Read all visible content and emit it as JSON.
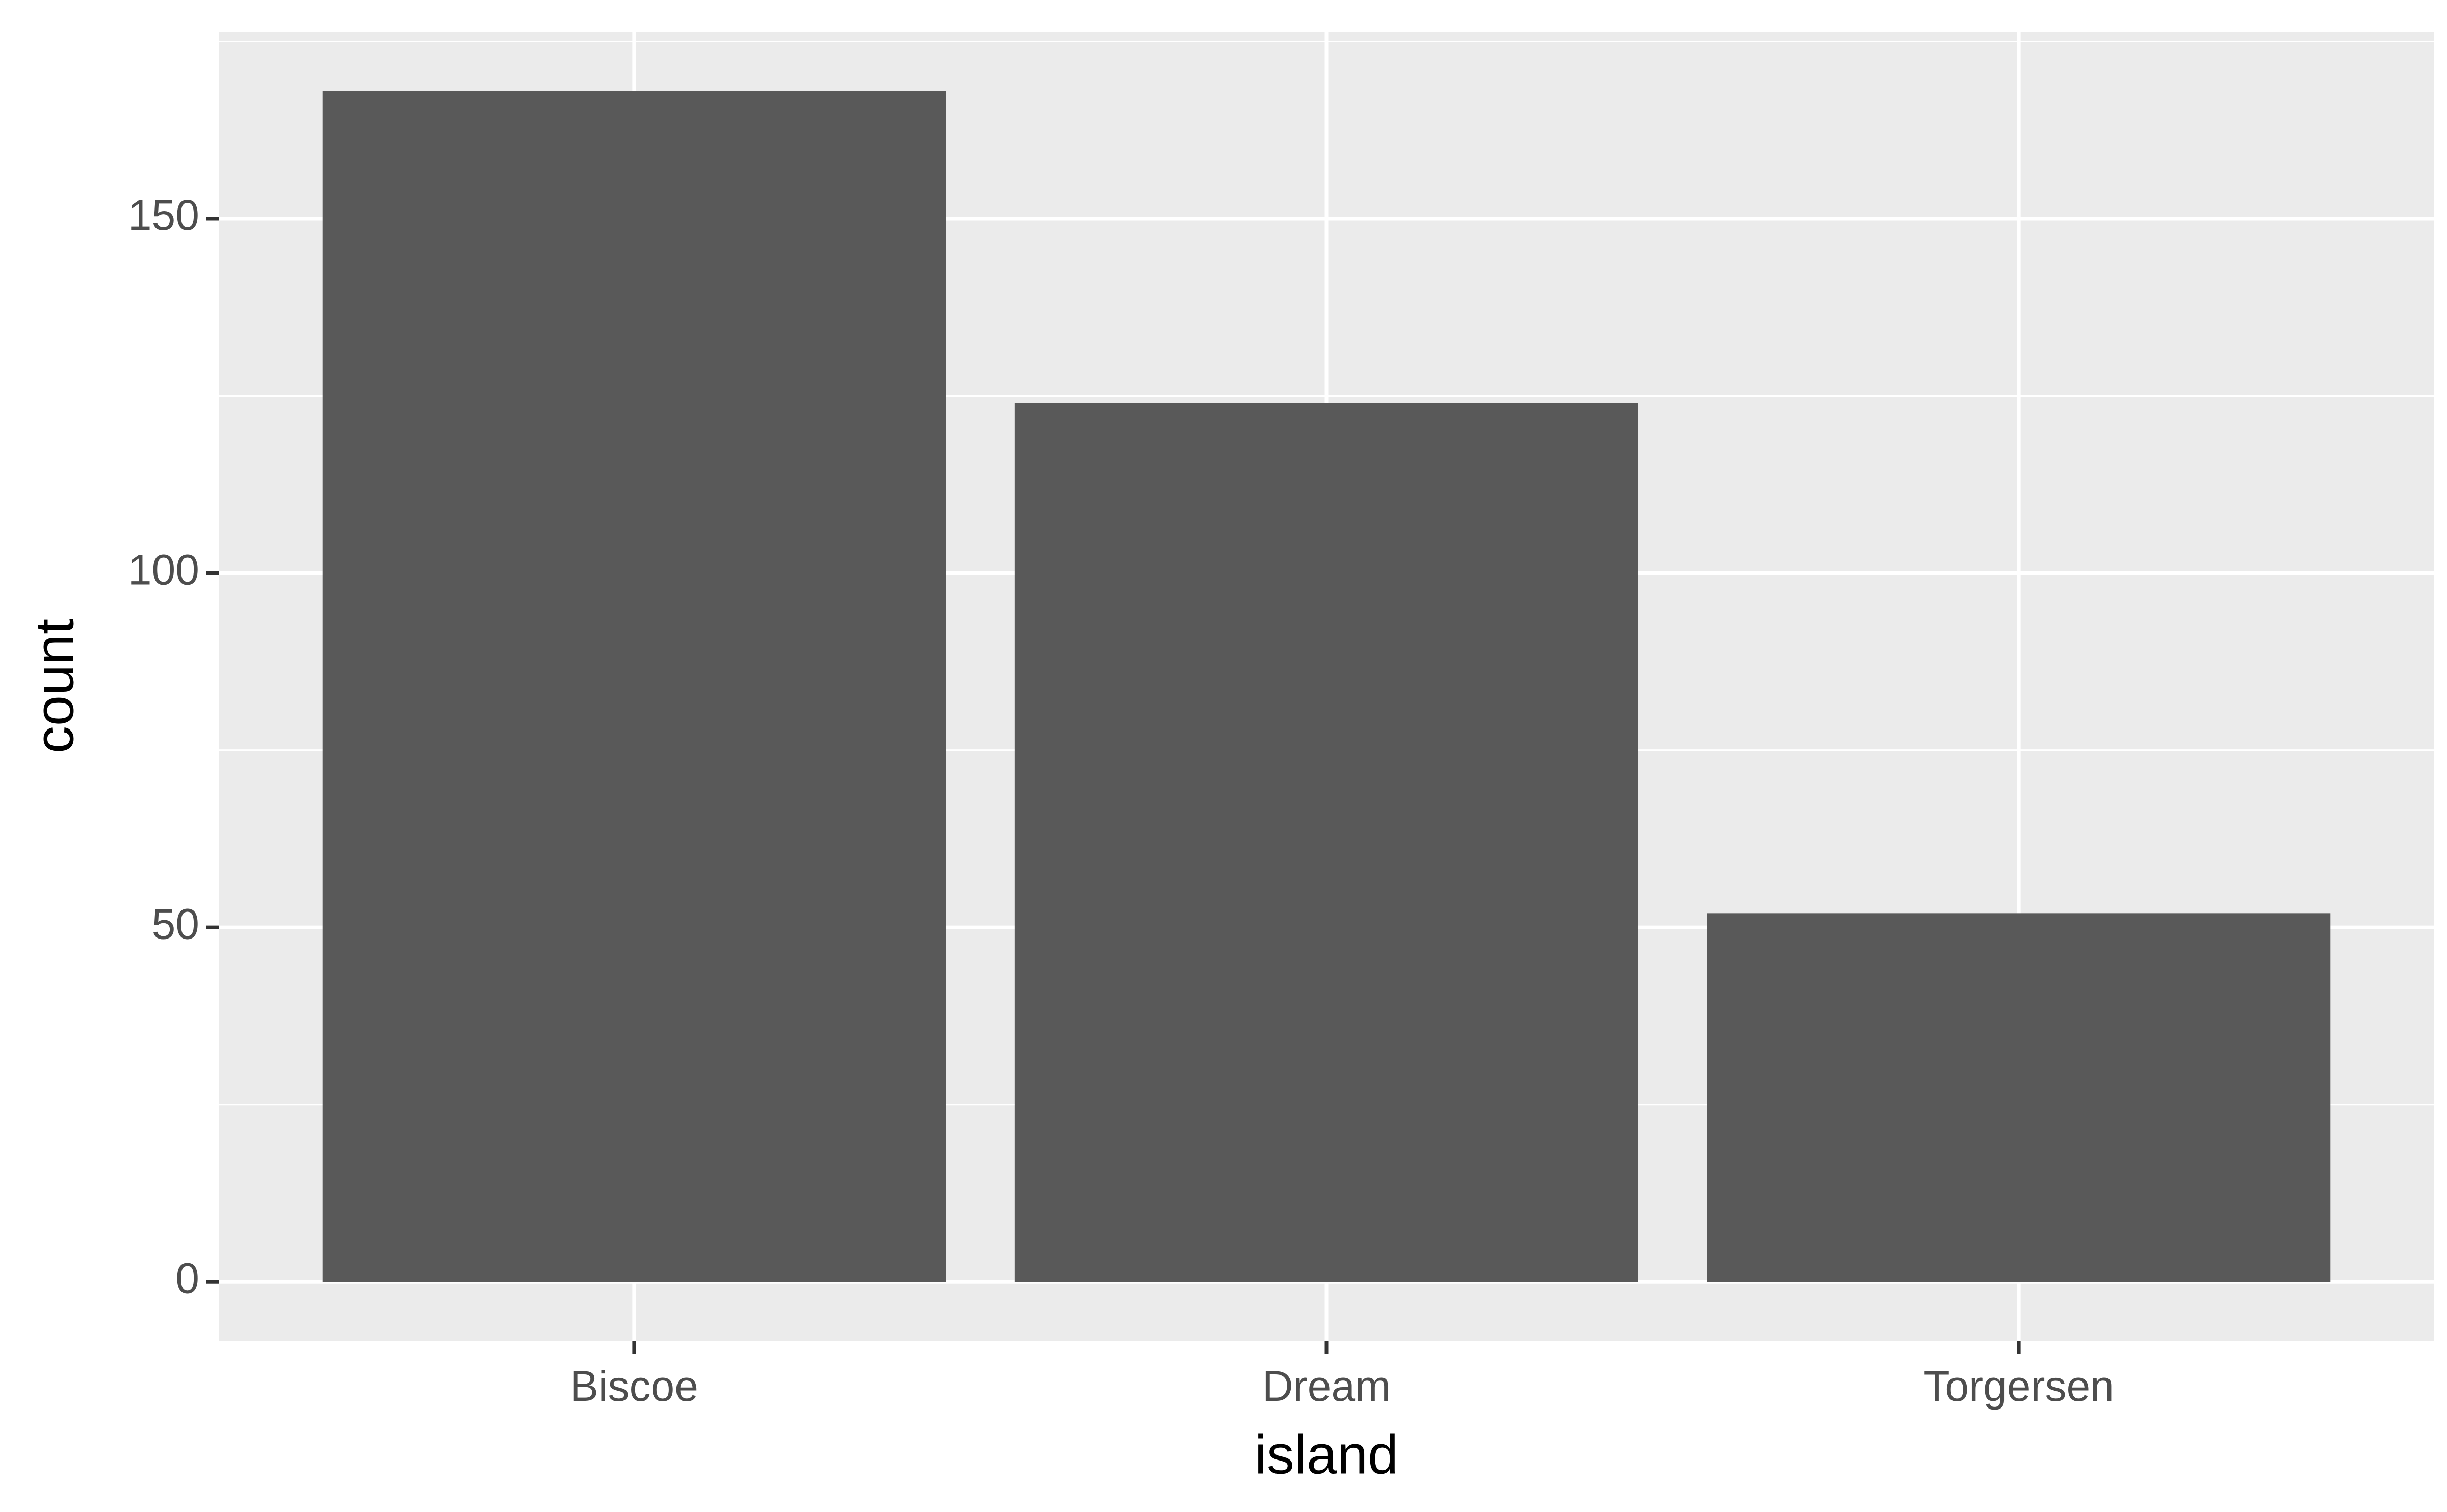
{
  "chart_data": {
    "type": "bar",
    "x_label": "island",
    "y_label": "count",
    "categories": [
      "Biscoe",
      "Dream",
      "Torgersen"
    ],
    "values": [
      168,
      124,
      52
    ],
    "color": "#595959",
    "ylim": [
      -8.4,
      176.4
    ],
    "yticks": [
      0,
      50,
      100,
      150
    ],
    "minor_yticks": [
      25,
      75,
      125,
      175
    ],
    "grid": true
  }
}
